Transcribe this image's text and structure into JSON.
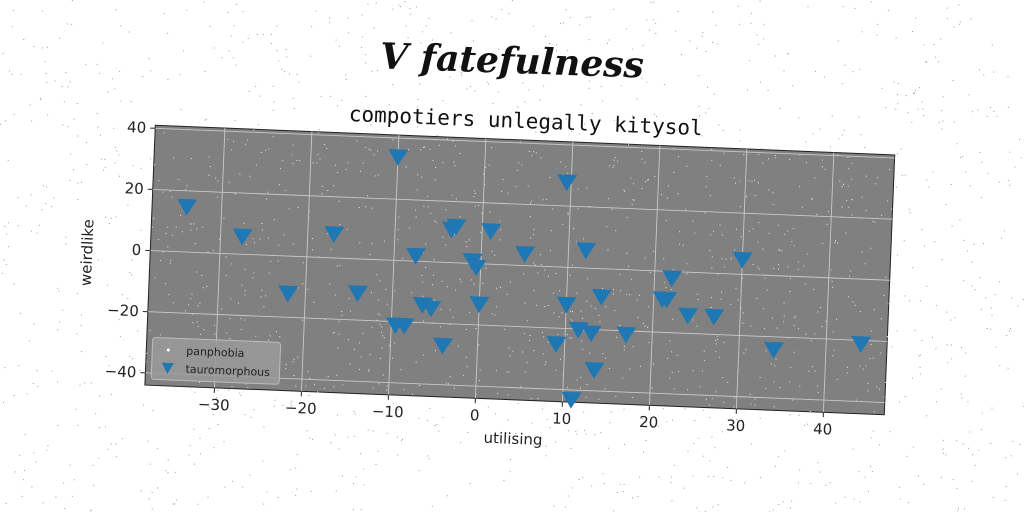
{
  "suptitle": "V fatefulness",
  "chart_data": {
    "type": "scatter",
    "title": "compotiers unlegally kitysol",
    "xlabel": "utilising",
    "ylabel": "weirdlike",
    "xlim": [
      -38,
      47
    ],
    "ylim": [
      -44,
      41
    ],
    "xticks": [
      -30,
      -20,
      -10,
      0,
      10,
      20,
      30,
      40
    ],
    "yticks": [
      -40,
      -20,
      0,
      20,
      40
    ],
    "xtick_labels": [
      "−30",
      "−20",
      "−10",
      "0",
      "10",
      "20",
      "30",
      "40"
    ],
    "ytick_labels": [
      "−40",
      "−20",
      "0",
      "20",
      "40"
    ],
    "grid": true,
    "legend_position": "lower-left",
    "background_color": "#808080",
    "series": [
      {
        "name": "panphobia",
        "marker": "point",
        "color": "#ffffff",
        "x": [],
        "y": []
      },
      {
        "name": "tauromorphous",
        "marker": "triangle-down",
        "color": "#1f77b4",
        "x": [
          -34,
          -27.5,
          -22,
          -17,
          -14,
          -10,
          -9.5,
          -8.5,
          -7.5,
          -6.5,
          -5.5,
          -4,
          -3.5,
          -3,
          -1,
          -0.5,
          0,
          1,
          5,
          9,
          9.5,
          10,
          11,
          11.5,
          12,
          13,
          13.5,
          14,
          17,
          21,
          21.5,
          22,
          24,
          27,
          30,
          34,
          44
        ],
        "y": [
          15,
          6,
          -12,
          8,
          -11,
          34,
          -21,
          -21,
          2,
          -14,
          -15,
          -27,
          11,
          12,
          1,
          -1,
          -13,
          11,
          4,
          -25,
          28,
          -12,
          -43,
          -20,
          6,
          -21,
          -33,
          -9,
          -21,
          -9,
          -9,
          -2,
          -14,
          -14,
          5,
          -24,
          -21
        ]
      }
    ]
  }
}
